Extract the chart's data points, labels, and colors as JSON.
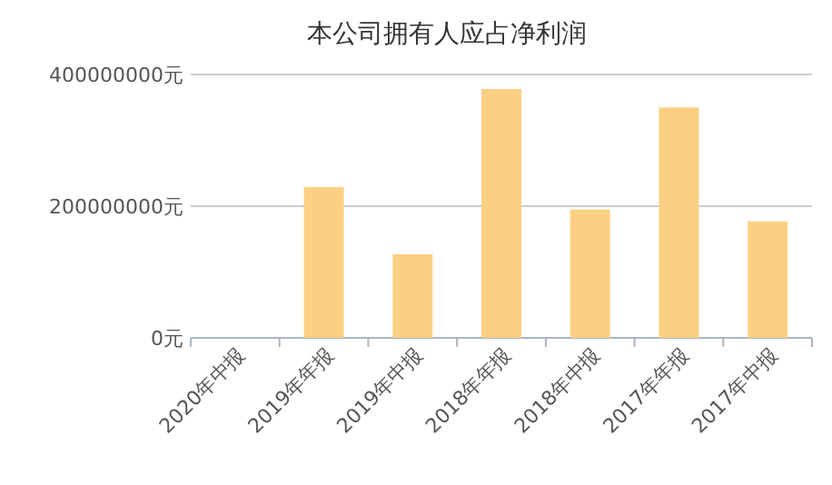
{
  "chart_data": {
    "type": "bar",
    "title": "本公司拥有人应占净利润",
    "categories": [
      "2020年中报",
      "2019年年报",
      "2019年中报",
      "2018年年报",
      "2018年中报",
      "2017年年报",
      "2017年中报"
    ],
    "values": [
      null,
      229000000,
      127000000,
      378000000,
      195000000,
      350000000,
      177000000
    ],
    "color": "#fbd084",
    "ylim": [
      0,
      400000000
    ],
    "yticks": [
      {
        "value": 0,
        "label": "0元"
      },
      {
        "value": 200000000,
        "label": "200000000元"
      },
      {
        "value": 400000000,
        "label": "400000000元"
      }
    ],
    "grid": "y"
  }
}
